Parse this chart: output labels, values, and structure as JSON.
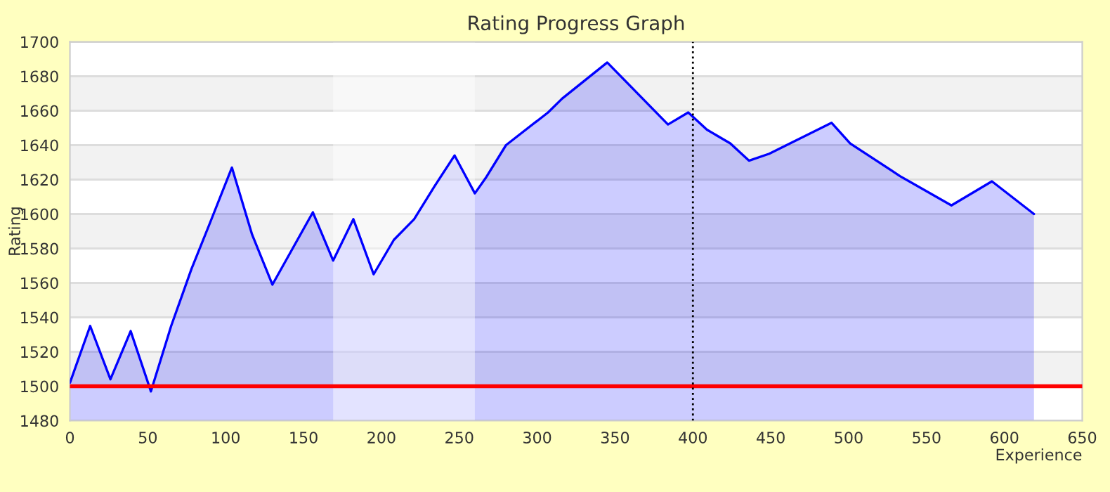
{
  "chart_data": {
    "type": "area",
    "title": "Rating Progress Graph",
    "xlabel": "Experience",
    "ylabel": "Rating",
    "series": [
      {
        "color": "#0000ff",
        "x": [
          0,
          13,
          26,
          39,
          52,
          65,
          78,
          90,
          104,
          117,
          130,
          143,
          156,
          169,
          182,
          195,
          208,
          221,
          234,
          247,
          260,
          267,
          280,
          307,
          316,
          345,
          384,
          397,
          409,
          424,
          436,
          449,
          489,
          501,
          533,
          566,
          592,
          619
        ],
        "values": [
          1502,
          1535,
          1504,
          1532,
          1497,
          1535,
          1568,
          1595,
          1627,
          1588,
          1559,
          1580,
          1601,
          1573,
          1597,
          1565,
          1585,
          1597,
          1616,
          1634,
          1612,
          1621,
          1640,
          1659,
          1667,
          1688,
          1652,
          1659,
          1649,
          1641,
          1631,
          1635,
          1653,
          1641,
          1622,
          1605,
          1619,
          1600
        ]
      }
    ],
    "xlim": [
      0,
      650
    ],
    "ylim": [
      1480,
      1700
    ],
    "xticks": [
      0,
      50,
      100,
      150,
      200,
      250,
      300,
      350,
      400,
      450,
      500,
      550,
      600,
      650
    ],
    "yticks": [
      1480,
      1500,
      1520,
      1540,
      1560,
      1580,
      1600,
      1620,
      1640,
      1660,
      1680,
      1700
    ],
    "grid": "y",
    "ref_lines": [
      {
        "axis": "y",
        "value": 1500,
        "color": "#ff0000",
        "line_style": "solid"
      },
      {
        "axis": "x",
        "value": 400,
        "color": "#000000",
        "line_style": "dotted"
      }
    ],
    "bands": [
      {
        "axis": "x",
        "from": 169,
        "to": 260,
        "color": "#ffffff"
      }
    ]
  }
}
